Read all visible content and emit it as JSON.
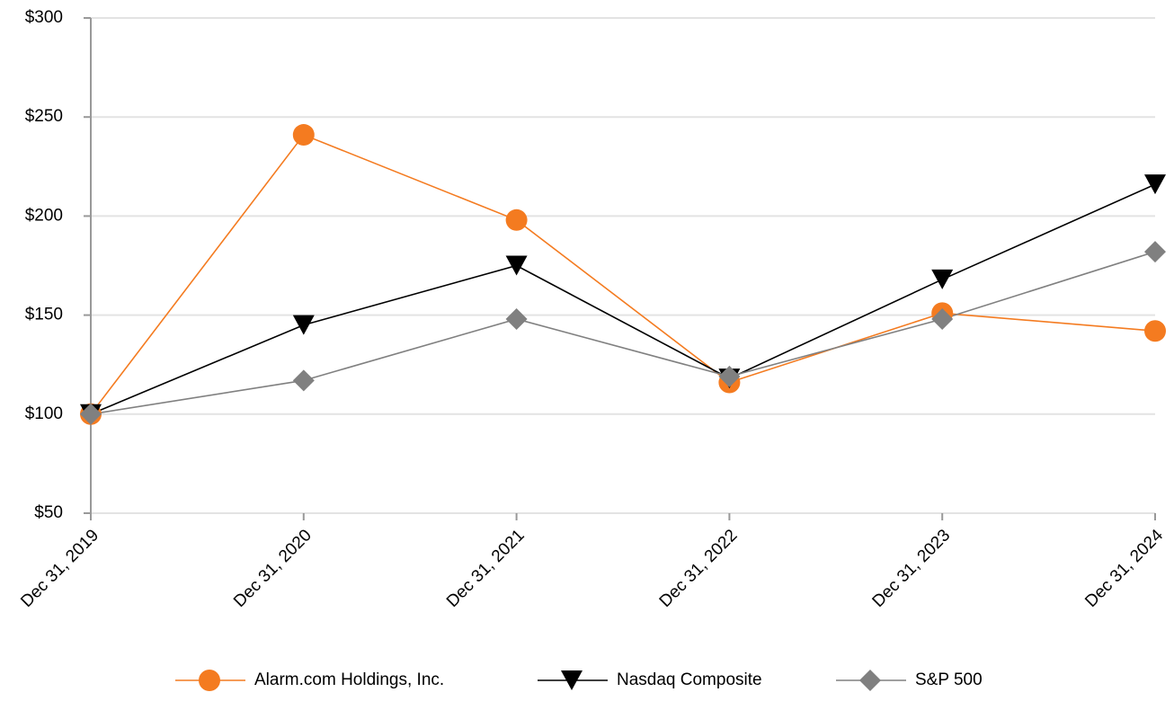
{
  "chart_data": {
    "type": "line",
    "categories": [
      "Dec 31, 2019",
      "Dec 31, 2020",
      "Dec 31, 2021",
      "Dec 31, 2022",
      "Dec 31, 2023",
      "Dec 31, 2024"
    ],
    "series": [
      {
        "name": "Alarm.com Holdings, Inc.",
        "color": "#f47b20",
        "marker": "circle",
        "values": [
          100,
          241,
          198,
          116,
          151,
          142
        ]
      },
      {
        "name": "Nasdaq Composite",
        "color": "#000000",
        "marker": "triangle-down",
        "values": [
          100,
          145,
          175,
          118,
          168,
          216
        ]
      },
      {
        "name": "S&P 500",
        "color": "#808080",
        "marker": "diamond",
        "values": [
          100,
          117,
          148,
          119,
          148,
          182
        ]
      }
    ],
    "ylim": [
      50,
      300
    ],
    "yticks": [
      {
        "value": 50,
        "label": "$50"
      },
      {
        "value": 100,
        "label": "$100"
      },
      {
        "value": 150,
        "label": "$150"
      },
      {
        "value": 200,
        "label": "$200"
      },
      {
        "value": 250,
        "label": "$250"
      },
      {
        "value": 300,
        "label": "$300"
      }
    ],
    "grid": true,
    "legend": "bottom"
  }
}
